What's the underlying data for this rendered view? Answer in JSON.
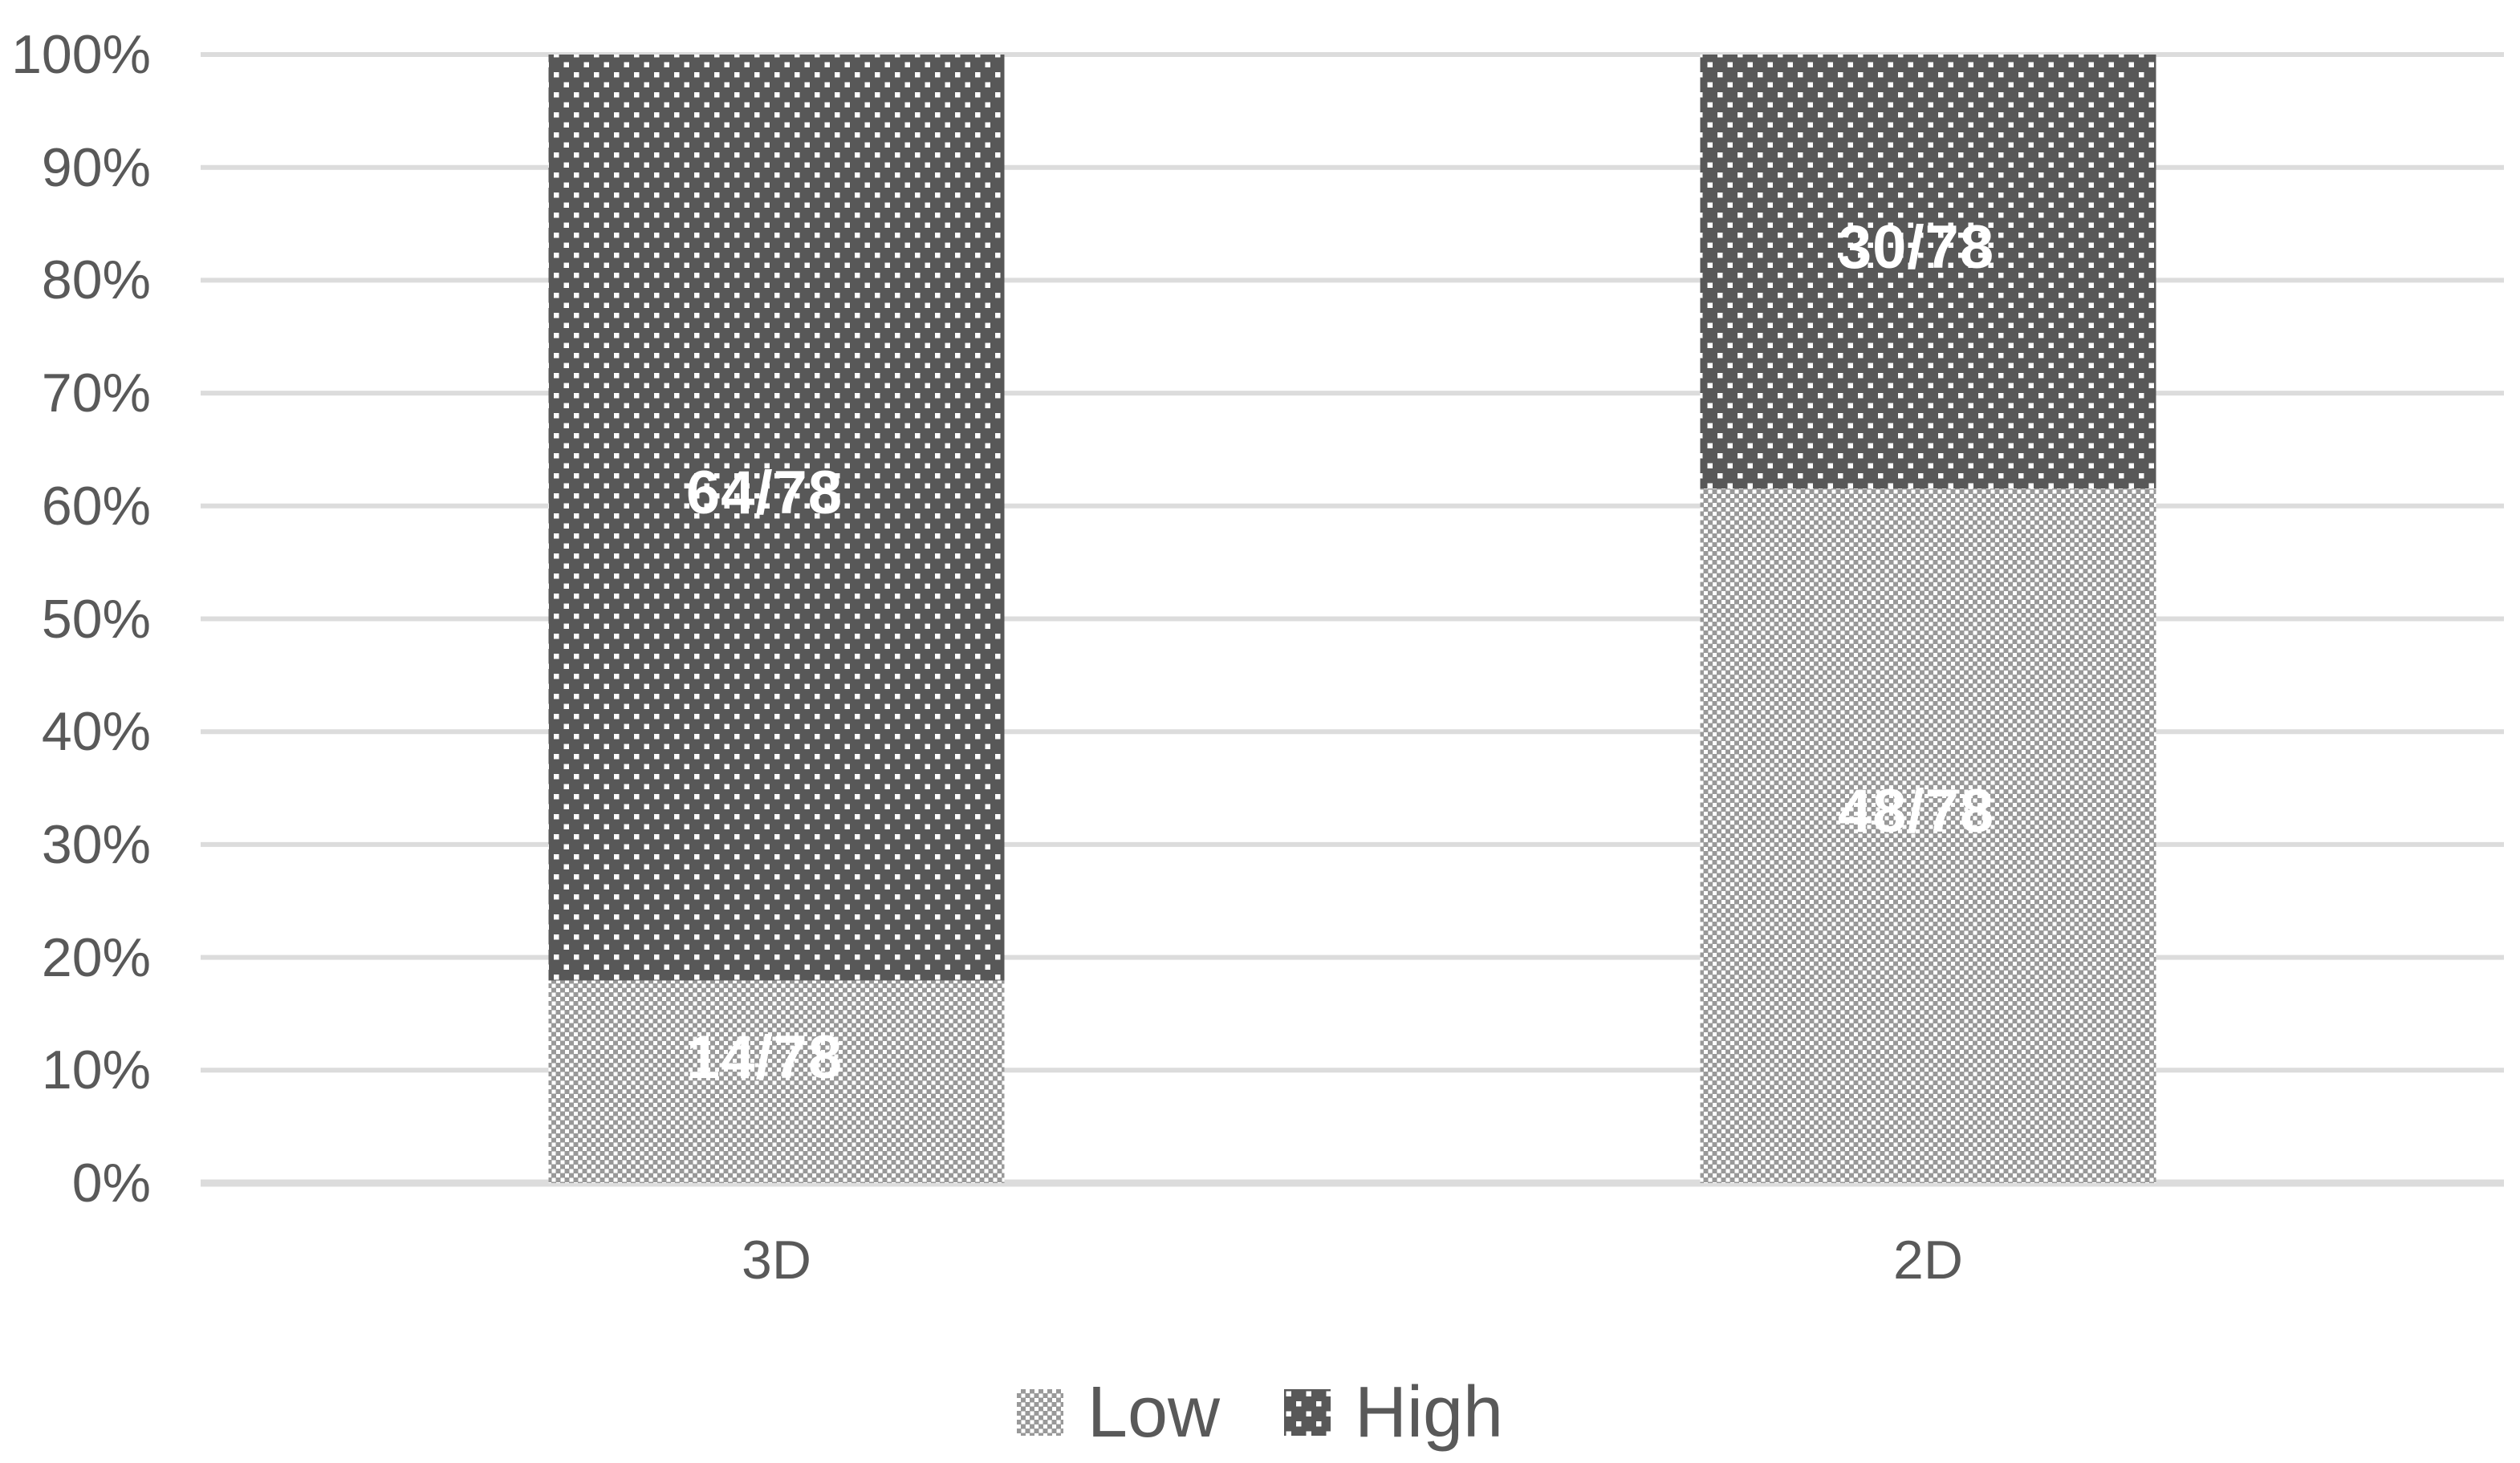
{
  "chart_data": {
    "type": "bar",
    "subtype": "stacked-100-percent",
    "orientation": "vertical",
    "categories": [
      "3D",
      "2D"
    ],
    "series": [
      {
        "name": "Low",
        "values": [
          14,
          48
        ],
        "labels": [
          "14/78",
          "48/78"
        ],
        "fill": "#999999",
        "pattern": "checker"
      },
      {
        "name": "High",
        "values": [
          64,
          30
        ],
        "labels": [
          "64/78",
          "30/78"
        ],
        "fill": "#585858",
        "pattern": "dots"
      }
    ],
    "y_axis": {
      "ticks": [
        "0%",
        "10%",
        "20%",
        "30%",
        "40%",
        "50%",
        "60%",
        "70%",
        "80%",
        "90%",
        "100%"
      ],
      "min": 0,
      "max": 100,
      "unit": "%"
    },
    "legend": {
      "position": "bottom"
    },
    "grid": true,
    "colors": {
      "background": "#ffffff",
      "gridline": "#dcdcdc",
      "axis_text": "#595959",
      "data_label_text": "#ffffff",
      "pattern_dot": "#ffffff"
    }
  }
}
